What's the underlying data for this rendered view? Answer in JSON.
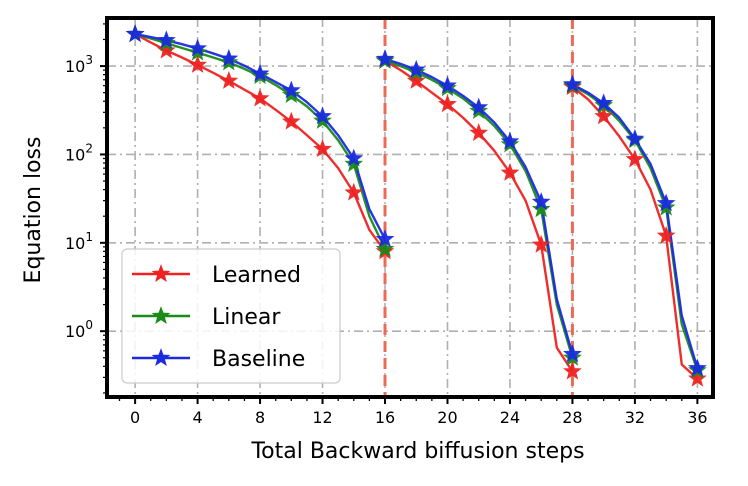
{
  "chart_data": {
    "type": "line",
    "title": "",
    "xlabel": "Total Backward biffusion steps",
    "ylabel": "Equation loss",
    "x_ticks": [
      0,
      4,
      8,
      12,
      16,
      20,
      24,
      28,
      32,
      36
    ],
    "x_tick_labels": [
      "0",
      "4",
      "8",
      "12",
      "16",
      "20",
      "24",
      "28",
      "32",
      "36"
    ],
    "y_scale": "log",
    "y_ticks": [
      1,
      10,
      100,
      1000
    ],
    "y_tick_labels": [
      {
        "base": "10",
        "exp": "0"
      },
      {
        "base": "10",
        "exp": "1"
      },
      {
        "base": "10",
        "exp": "2"
      },
      {
        "base": "10",
        "exp": "3"
      }
    ],
    "xlim": [
      -1.8,
      37.0
    ],
    "ylim": [
      0.18,
      3500
    ],
    "grid": true,
    "legend_position": "lower-left",
    "vertical_markers": [
      16,
      28
    ],
    "vertical_marker_color": "#ee6a55",
    "series": [
      {
        "name": "Learned",
        "color": "#ee2222",
        "segments": [
          {
            "x": [
              0,
              1,
              2,
              3,
              4,
              5,
              6,
              7,
              8,
              9,
              10,
              11,
              12,
              13,
              14,
              15,
              16
            ],
            "y": [
              2300,
              1850,
              1500,
              1250,
              1030,
              840,
              680,
              540,
              430,
              320,
              235,
              165,
              115,
              70,
              37,
              14,
              8
            ],
            "markers": [
              0,
              2,
              4,
              6,
              8,
              10,
              12,
              14,
              16
            ]
          },
          {
            "x": [
              16,
              17,
              18,
              19,
              20,
              21,
              22,
              23,
              24,
              25,
              26,
              27,
              28
            ],
            "y": [
              1150,
              900,
              680,
              500,
              370,
              260,
              175,
              110,
              62,
              30,
              9.5,
              0.65,
              0.35
            ],
            "markers": [
              16,
              18,
              20,
              22,
              24,
              26,
              28
            ]
          },
          {
            "x": [
              28,
              29,
              30,
              31,
              32,
              33,
              34,
              35,
              36
            ],
            "y": [
              580,
              420,
              270,
              160,
              88,
              40,
              12,
              0.42,
              0.29
            ],
            "markers": [
              28,
              30,
              32,
              34,
              36
            ]
          }
        ]
      },
      {
        "name": "Linear",
        "color": "#1a8a1a",
        "segments": [
          {
            "x": [
              0,
              1,
              2,
              3,
              4,
              5,
              6,
              7,
              8,
              9,
              10,
              11,
              12,
              13,
              14,
              15,
              16
            ],
            "y": [
              2300,
              2050,
              1820,
              1600,
              1420,
              1250,
              1100,
              930,
              770,
              610,
              470,
              350,
              240,
              145,
              78,
              20,
              8.5
            ],
            "markers": [
              0,
              2,
              4,
              6,
              8,
              10,
              12,
              14,
              16
            ]
          },
          {
            "x": [
              16,
              17,
              18,
              19,
              20,
              21,
              22,
              23,
              24,
              25,
              26,
              27,
              28
            ],
            "y": [
              1150,
              1000,
              850,
              700,
              560,
              430,
              310,
              210,
              130,
              65,
              24,
              2.0,
              0.5
            ],
            "markers": [
              16,
              18,
              20,
              22,
              24,
              26,
              28
            ]
          },
          {
            "x": [
              28,
              29,
              30,
              31,
              32,
              33,
              34,
              35,
              36
            ],
            "y": [
              600,
              480,
              360,
              240,
              145,
              70,
              25,
              1.2,
              0.36
            ],
            "markers": [
              28,
              30,
              32,
              34,
              36
            ]
          }
        ]
      },
      {
        "name": "Baseline",
        "color": "#1a2be0",
        "segments": [
          {
            "x": [
              0,
              1,
              2,
              3,
              4,
              5,
              6,
              7,
              8,
              9,
              10,
              11,
              12,
              13,
              14,
              15,
              16
            ],
            "y": [
              2300,
              2130,
              1960,
              1770,
              1580,
              1390,
              1210,
              1010,
              820,
              660,
              530,
              390,
              270,
              165,
              90,
              24,
              11
            ],
            "markers": [
              0,
              2,
              4,
              6,
              8,
              10,
              12,
              14,
              16
            ]
          },
          {
            "x": [
              16,
              17,
              18,
              19,
              20,
              21,
              22,
              23,
              24,
              25,
              26,
              27,
              28
            ],
            "y": [
              1200,
              1060,
              910,
              750,
              600,
              460,
              340,
              230,
              140,
              72,
              29,
              2.3,
              0.55
            ],
            "markers": [
              16,
              18,
              20,
              22,
              24,
              26,
              28
            ]
          },
          {
            "x": [
              28,
              29,
              30,
              31,
              32,
              33,
              34,
              35,
              36
            ],
            "y": [
              620,
              500,
              380,
              260,
              150,
              78,
              28,
              1.5,
              0.38
            ],
            "markers": [
              28,
              30,
              32,
              34,
              36
            ]
          }
        ]
      }
    ]
  }
}
